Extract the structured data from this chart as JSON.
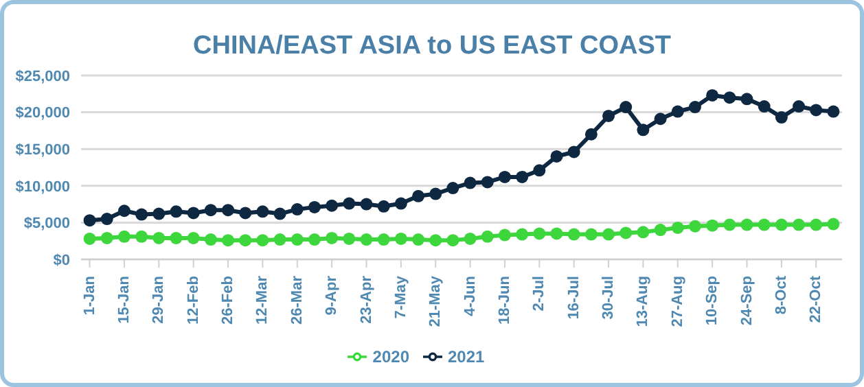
{
  "chart_data": {
    "type": "line",
    "title": "CHINA/EAST ASIA to US EAST COAST",
    "categories": [
      "1-Jan",
      null,
      "15-Jan",
      null,
      "29-Jan",
      null,
      "12-Feb",
      null,
      "26-Feb",
      null,
      "12-Mar",
      null,
      "26-Mar",
      null,
      "9-Apr",
      null,
      "23-Apr",
      null,
      "7-May",
      null,
      "21-May",
      null,
      "4-Jun",
      null,
      "18-Jun",
      null,
      "2-Jul",
      null,
      "16-Jul",
      null,
      "30-Jul",
      null,
      "13-Aug",
      null,
      "27-Aug",
      null,
      "10-Sep",
      null,
      "24-Sep",
      null,
      "8-Oct",
      null,
      "22-Oct",
      null
    ],
    "series": [
      {
        "name": "2020",
        "color": "#3dd63d",
        "values": [
          2800,
          2900,
          3100,
          3100,
          2900,
          2900,
          2900,
          2700,
          2600,
          2600,
          2600,
          2700,
          2700,
          2700,
          2900,
          2800,
          2700,
          2700,
          2800,
          2700,
          2600,
          2600,
          2800,
          3100,
          3300,
          3400,
          3500,
          3500,
          3400,
          3400,
          3400,
          3600,
          3700,
          4000,
          4300,
          4500,
          4600,
          4700,
          4700,
          4700,
          4700,
          4700,
          4700,
          4800
        ]
      },
      {
        "name": "2021",
        "color": "#0e2841",
        "values": [
          5300,
          5500,
          6600,
          6100,
          6200,
          6500,
          6300,
          6700,
          6700,
          6300,
          6500,
          6200,
          6800,
          7100,
          7300,
          7600,
          7500,
          7200,
          7600,
          8600,
          8900,
          9700,
          10400,
          10500,
          11200,
          11200,
          12100,
          14000,
          14600,
          17000,
          19500,
          20700,
          17600,
          19100,
          20100,
          20700,
          22300,
          22000,
          21800,
          20800,
          19300,
          20800,
          20300,
          20100
        ]
      }
    ],
    "ylim": [
      0,
      25000
    ],
    "yticks": [
      {
        "value": 0,
        "label": "$0"
      },
      {
        "value": 5000,
        "label": "$5,000"
      },
      {
        "value": 10000,
        "label": "$10,000"
      },
      {
        "value": 15000,
        "label": "$15,000"
      },
      {
        "value": 20000,
        "label": "$20,000"
      },
      {
        "value": 25000,
        "label": "$25,000"
      }
    ],
    "grid": "y",
    "legend": "bottom",
    "marker": "circle",
    "line_style": "solid"
  }
}
